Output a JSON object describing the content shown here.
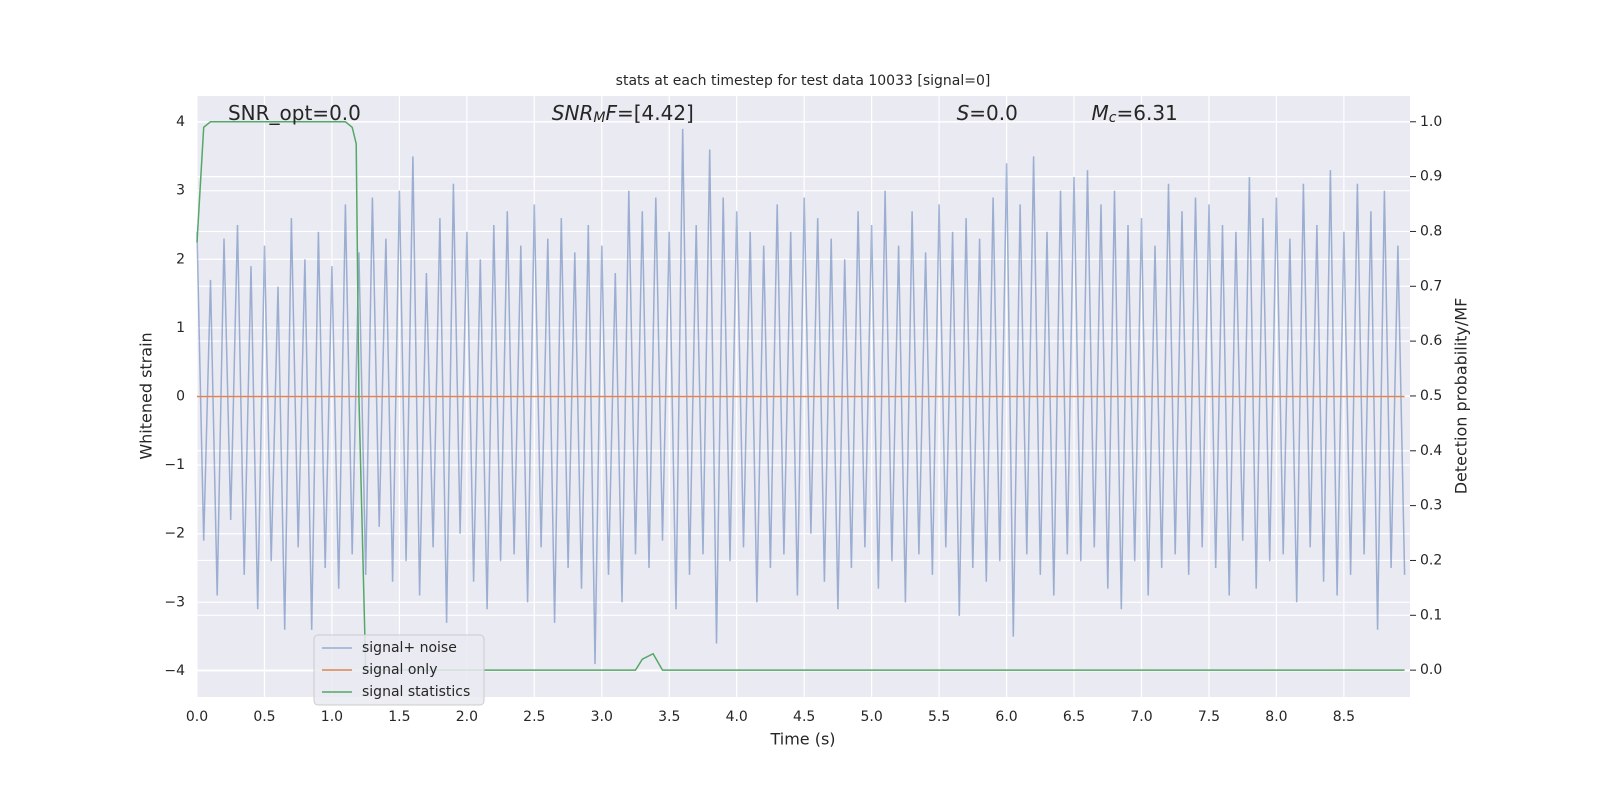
{
  "chart_data": {
    "type": "line",
    "title": "stats at each timestep for test data 10033 [signal=0]",
    "xlabel": "Time (s)",
    "ylabel": "Whitened strain",
    "y2label": "Detection probability/MF",
    "annotations": [
      {
        "x": 0.2,
        "parts": [
          {
            "text": "SNR_opt=0.0",
            "style": "normal"
          }
        ]
      },
      {
        "x": 2.6,
        "parts": [
          {
            "text": "SNR",
            "style": "italic"
          },
          {
            "text": "M",
            "style": "sub"
          },
          {
            "text": "F",
            "style": "italic"
          },
          {
            "text": "=[4.42]",
            "style": "normal"
          }
        ]
      },
      {
        "x": 5.6,
        "parts": [
          {
            "text": "S",
            "style": "italic"
          },
          {
            "text": "=0.0",
            "style": "normal"
          }
        ]
      },
      {
        "x": 6.6,
        "parts": [
          {
            "text": "M",
            "style": "italic"
          },
          {
            "text": "c",
            "style": "sub"
          },
          {
            "text": "=6.31",
            "style": "normal"
          }
        ]
      }
    ],
    "xlim": [
      0,
      8.99
    ],
    "ylim": [
      -4.38,
      4.38
    ],
    "y2lim": [
      -0.049,
      1.047
    ],
    "grid": true,
    "legend": "lower left",
    "xticks": [
      {
        "value": 0,
        "label": "0.0"
      },
      {
        "value": 0.5,
        "label": "0.5"
      },
      {
        "value": 1,
        "label": "1.0"
      },
      {
        "value": 1.5,
        "label": "1.5"
      },
      {
        "value": 2,
        "label": "2.0"
      },
      {
        "value": 2.5,
        "label": "2.5"
      },
      {
        "value": 3,
        "label": "3.0"
      },
      {
        "value": 3.5,
        "label": "3.5"
      },
      {
        "value": 4,
        "label": "4.0"
      },
      {
        "value": 4.5,
        "label": "4.5"
      },
      {
        "value": 5,
        "label": "5.0"
      },
      {
        "value": 5.5,
        "label": "5.5"
      },
      {
        "value": 6,
        "label": "6.0"
      },
      {
        "value": 6.5,
        "label": "6.5"
      },
      {
        "value": 7,
        "label": "7.0"
      },
      {
        "value": 7.5,
        "label": "7.5"
      },
      {
        "value": 8,
        "label": "8.0"
      },
      {
        "value": 8.5,
        "label": "8.5"
      }
    ],
    "yticks": [
      {
        "value": -4,
        "label": "−4"
      },
      {
        "value": -3,
        "label": "−3"
      },
      {
        "value": -2,
        "label": "−2"
      },
      {
        "value": -1,
        "label": "−1"
      },
      0,
      1,
      2,
      3,
      4
    ],
    "y2ticks": [
      {
        "value": 0,
        "label": "0.0"
      },
      {
        "value": 0.1,
        "label": "0.1"
      },
      {
        "value": 0.2,
        "label": "0.2"
      },
      {
        "value": 0.3,
        "label": "0.3"
      },
      {
        "value": 0.4,
        "label": "0.4"
      },
      {
        "value": 0.5,
        "label": "0.5"
      },
      {
        "value": 0.6,
        "label": "0.6"
      },
      {
        "value": 0.7,
        "label": "0.7"
      },
      {
        "value": 0.8,
        "label": "0.8"
      },
      {
        "value": 0.9,
        "label": "0.9"
      },
      {
        "value": 1,
        "label": "1.0"
      }
    ],
    "series": [
      {
        "name": "signal+ noise",
        "color": "#4c72b0",
        "alpha": 0.5,
        "axis": "y",
        "x": [
          0,
          0.05,
          0.1,
          0.15,
          0.2,
          0.25,
          0.3,
          0.35,
          0.4,
          0.45,
          0.5,
          0.55,
          0.6,
          0.65,
          0.7,
          0.75,
          0.8,
          0.85,
          0.9,
          0.95,
          1,
          1.05,
          1.1,
          1.15,
          1.2,
          1.25,
          1.3,
          1.35,
          1.4,
          1.45,
          1.5,
          1.55,
          1.6,
          1.65,
          1.7,
          1.75,
          1.8,
          1.85,
          1.9,
          1.95,
          2,
          2.05,
          2.1,
          2.15,
          2.2,
          2.25,
          2.3,
          2.35,
          2.4,
          2.45,
          2.5,
          2.55,
          2.6,
          2.65,
          2.7,
          2.75,
          2.8,
          2.85,
          2.9,
          2.95,
          3,
          3.05,
          3.1,
          3.15,
          3.2,
          3.25,
          3.3,
          3.35,
          3.4,
          3.45,
          3.5,
          3.55,
          3.6,
          3.65,
          3.7,
          3.75,
          3.8,
          3.85,
          3.9,
          3.95,
          4,
          4.05,
          4.1,
          4.15,
          4.2,
          4.25,
          4.3,
          4.35,
          4.4,
          4.45,
          4.5,
          4.55,
          4.6,
          4.65,
          4.7,
          4.75,
          4.8,
          4.85,
          4.9,
          4.95,
          5,
          5.05,
          5.1,
          5.15,
          5.2,
          5.25,
          5.3,
          5.35,
          5.4,
          5.45,
          5.5,
          5.55,
          5.6,
          5.65,
          5.7,
          5.75,
          5.8,
          5.85,
          5.9,
          5.95,
          6,
          6.05,
          6.1,
          6.15,
          6.2,
          6.25,
          6.3,
          6.35,
          6.4,
          6.45,
          6.5,
          6.55,
          6.6,
          6.65,
          6.7,
          6.75,
          6.8,
          6.85,
          6.9,
          6.95,
          7,
          7.05,
          7.1,
          7.15,
          7.2,
          7.25,
          7.3,
          7.35,
          7.4,
          7.45,
          7.5,
          7.55,
          7.6,
          7.65,
          7.7,
          7.75,
          7.8,
          7.85,
          7.9,
          7.95,
          8,
          8.05,
          8.1,
          8.15,
          8.2,
          8.25,
          8.3,
          8.35,
          8.4,
          8.45,
          8.5,
          8.55,
          8.6,
          8.65,
          8.7,
          8.75,
          8.8,
          8.85,
          8.9,
          8.95
        ],
        "values": [
          2.4,
          -2.1,
          1.7,
          -2.9,
          2.3,
          -1.8,
          2.5,
          -2.6,
          1.9,
          -3.1,
          2.2,
          -2.4,
          1.6,
          -3.4,
          2.6,
          -2.2,
          2.0,
          -3.4,
          2.4,
          -2.5,
          1.9,
          -2.8,
          2.8,
          -2.3,
          2.1,
          -2.6,
          2.9,
          -1.9,
          2.3,
          -2.7,
          3.0,
          -2.4,
          3.5,
          -2.9,
          1.8,
          -2.2,
          2.6,
          -3.3,
          3.1,
          -2.0,
          2.4,
          -2.7,
          2.0,
          -3.1,
          2.5,
          -2.4,
          2.7,
          -2.3,
          2.2,
          -3.0,
          2.8,
          -2.2,
          2.3,
          -3.3,
          2.6,
          -2.5,
          2.1,
          -2.8,
          2.5,
          -3.9,
          2.2,
          -2.6,
          1.8,
          -3.0,
          3.0,
          -2.3,
          2.7,
          -2.5,
          2.9,
          -2.1,
          2.4,
          -3.1,
          3.9,
          -2.6,
          2.5,
          -2.3,
          3.6,
          -3.6,
          2.9,
          -2.4,
          2.7,
          -2.2,
          2.4,
          -3.0,
          2.2,
          -2.5,
          2.8,
          -2.3,
          2.4,
          -2.9,
          2.9,
          -2.0,
          2.6,
          -2.7,
          2.3,
          -3.1,
          2.0,
          -2.5,
          2.7,
          -2.2,
          2.5,
          -2.8,
          3.0,
          -2.4,
          2.2,
          -3.0,
          2.7,
          -2.3,
          2.1,
          -2.6,
          2.8,
          -2.2,
          2.4,
          -3.2,
          2.6,
          -2.5,
          2.3,
          -2.7,
          2.9,
          -2.4,
          3.4,
          -3.5,
          2.8,
          -2.3,
          3.5,
          -2.6,
          2.4,
          -2.9,
          3.0,
          -2.3,
          3.2,
          -2.4,
          3.3,
          -2.2,
          2.8,
          -2.8,
          3.0,
          -3.1,
          2.5,
          -2.4,
          2.6,
          -2.9,
          2.2,
          -2.5,
          3.1,
          -2.3,
          2.7,
          -2.6,
          2.9,
          -2.2,
          2.8,
          -2.5,
          2.5,
          -2.9,
          2.4,
          -2.1,
          3.2,
          -2.8,
          2.6,
          -2.4,
          2.9,
          -2.3,
          2.3,
          -3.0,
          3.1,
          -2.2,
          2.5,
          -2.7,
          3.3,
          -2.9,
          2.4,
          -2.6,
          3.1,
          -2.3,
          2.7,
          -3.4,
          3.0,
          -2.5,
          2.2,
          -2.6
        ]
      },
      {
        "name": "signal only",
        "color": "#dd8452",
        "alpha": 1,
        "axis": "y",
        "x": [
          0,
          8.95
        ],
        "values": [
          0,
          0
        ]
      },
      {
        "name": "signal statistics",
        "color": "#55a868",
        "alpha": 1,
        "axis": "y2",
        "x": [
          0,
          0.05,
          0.1,
          0.5,
          1.0,
          1.1,
          1.15,
          1.18,
          1.2,
          1.25,
          1.5,
          2.0,
          3.0,
          3.25,
          3.3,
          3.38,
          3.45,
          4.0,
          8.95
        ],
        "values": [
          0.78,
          0.99,
          1.0,
          1.0,
          1.0,
          1.0,
          0.99,
          0.96,
          0.5,
          0.0,
          0.0,
          0.0,
          0.0,
          0.0,
          0.02,
          0.03,
          0.0,
          0.0,
          0.0
        ]
      }
    ]
  }
}
